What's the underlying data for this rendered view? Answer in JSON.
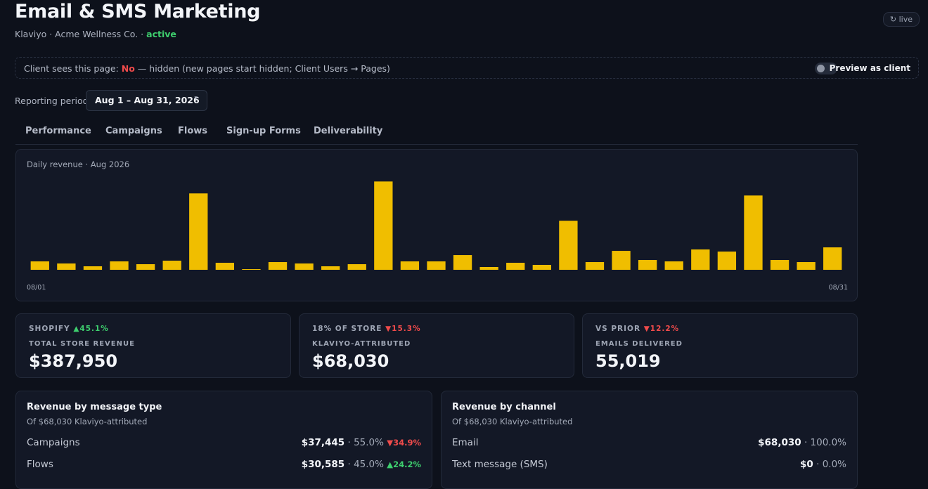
{
  "header": {
    "title": "Email & SMS Marketing",
    "subtitle": "Klaviyo · Acme Wellness Co. ·",
    "status": "active",
    "badge": "↻ live"
  },
  "banner": {
    "label": "Client sees this page:",
    "state": "No",
    "detail": "— hidden (new pages start hidden; Client Users → Pages)",
    "toggle": "Preview as client"
  },
  "period": {
    "label": "Reporting period",
    "value": "Aug 1 – Aug 31, 2026"
  },
  "tabs": [
    "Performance",
    "Campaigns",
    "Flows",
    "Sign-up Forms",
    "Deliverability"
  ],
  "chart_data": {
    "type": "bar",
    "title": "Daily revenue · Aug 2026",
    "categories": [
      "08/01",
      null,
      null,
      null,
      null,
      null,
      null,
      null,
      null,
      null,
      null,
      null,
      null,
      null,
      null,
      null,
      null,
      null,
      null,
      null,
      null,
      null,
      null,
      null,
      null,
      null,
      null,
      null,
      null,
      null,
      "08/31"
    ],
    "values": [
      1080,
      810,
      450,
      1080,
      720,
      1170,
      9810,
      900,
      90,
      990,
      810,
      450,
      720,
      11340,
      1080,
      1080,
      1890,
      360,
      900,
      630,
      6300,
      990,
      2430,
      1260,
      1080,
      2610,
      2340,
      9540,
      1260,
      990,
      2880
    ],
    "color": "#f0be00",
    "ylim": [
      0,
      12000
    ]
  },
  "kpis": [
    {
      "source": "SHOPIFY",
      "delta": "▲45.1%",
      "label": "TOTAL STORE REVENUE",
      "value": "$387,950"
    },
    {
      "source": "18% OF STORE",
      "delta": "▼15.3%",
      "label": "KLAVIYO-ATTRIBUTED",
      "value": "$68,030"
    },
    {
      "source": "VS PRIOR",
      "delta": "▼12.2%",
      "label": "EMAILS DELIVERED",
      "value": "55,019"
    }
  ],
  "panels": [
    {
      "title": "Revenue by message type",
      "subtitle": "Of $68,030 Klaviyo-attributed",
      "rows": [
        {
          "name": "Campaigns",
          "value": "$37,445",
          "share": "· 55.0%",
          "delta": "▼34.9%"
        },
        {
          "name": "Flows",
          "value": "$30,585",
          "share": "· 45.0%",
          "delta": "▲24.2%"
        }
      ]
    },
    {
      "title": "Revenue by channel",
      "subtitle": "Of $68,030 Klaviyo-attributed",
      "rows": [
        {
          "name": "Email",
          "value": "$68,030",
          "share": "· 100.0%"
        },
        {
          "name": "Text message (SMS)",
          "value": "$0",
          "share": "· 0.0%"
        }
      ]
    }
  ]
}
